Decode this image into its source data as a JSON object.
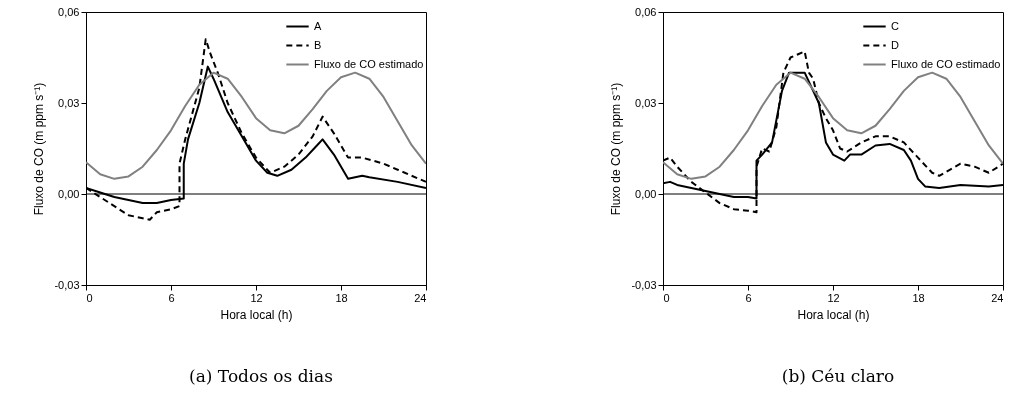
{
  "chart_data": [
    {
      "type": "line",
      "xlabel": "Hora local (h)",
      "ylabel": "Fluxo de CO (m ppm s⁻¹)",
      "xlim": [
        0,
        24
      ],
      "ylim": [
        -0.03,
        0.06
      ],
      "xticks": [
        0,
        6,
        12,
        18,
        24
      ],
      "yticks": [
        {
          "value": -0.03,
          "label": "-0,03"
        },
        {
          "value": 0,
          "label": "0,00"
        },
        {
          "value": 0.03,
          "label": "0,03"
        },
        {
          "value": 0.06,
          "label": "0,06"
        }
      ],
      "grid": false,
      "legend": "top right",
      "marker": "none",
      "ref_lines": [
        {
          "axis": "y",
          "value": 0
        }
      ],
      "annotations": [
        "(a)  Todos os dias"
      ],
      "series": [
        {
          "name": "A",
          "color": "#000000",
          "line_style": "solid",
          "x": [
            0,
            1,
            2,
            3,
            4,
            5,
            6,
            6.9,
            6.9,
            7.2,
            8,
            8.6,
            9,
            10,
            11,
            12,
            12.8,
            13.5,
            14.5,
            15.5,
            16.3,
            16.7,
            17.5,
            18.5,
            19.5,
            20,
            22,
            24
          ],
          "values": [
            0.002,
            0.0005,
            -0.001,
            -0.002,
            -0.003,
            -0.003,
            -0.002,
            -0.0015,
            0.01,
            0.018,
            0.03,
            0.042,
            0.038,
            0.027,
            0.019,
            0.011,
            0.007,
            0.006,
            0.008,
            0.012,
            0.016,
            0.018,
            0.013,
            0.005,
            0.006,
            0.0055,
            0.004,
            0.002
          ]
        },
        {
          "name": "B",
          "color": "#000000",
          "line_style": "dashed",
          "x": [
            0,
            1,
            2,
            3,
            4,
            4.5,
            5,
            6,
            6.6,
            6.6,
            7,
            8,
            8.45,
            8.8,
            9.3,
            10,
            11,
            12,
            13,
            14,
            15,
            16,
            16.7,
            17.5,
            18.5,
            19.5,
            21,
            22,
            23.5,
            24
          ],
          "values": [
            0.002,
            -0.001,
            -0.004,
            -0.007,
            -0.008,
            -0.0085,
            -0.006,
            -0.005,
            -0.004,
            0.01,
            0.018,
            0.035,
            0.051,
            0.046,
            0.04,
            0.03,
            0.02,
            0.012,
            0.007,
            0.009,
            0.013,
            0.019,
            0.0255,
            0.02,
            0.012,
            0.012,
            0.01,
            0.008,
            0.005,
            0.004
          ]
        },
        {
          "name": "Fluxo de CO estimado",
          "color": "#808080",
          "line_style": "solid",
          "x": [
            0,
            1,
            2,
            3,
            4,
            5,
            6,
            7,
            8,
            9,
            10,
            11,
            12,
            13,
            14,
            15,
            16,
            17,
            18,
            19,
            20,
            21,
            22,
            23,
            24
          ],
          "values": [
            0.0105,
            0.0065,
            0.005,
            0.0058,
            0.009,
            0.0145,
            0.021,
            0.029,
            0.036,
            0.04,
            0.038,
            0.032,
            0.025,
            0.021,
            0.02,
            0.0225,
            0.028,
            0.034,
            0.0385,
            0.04,
            0.038,
            0.032,
            0.024,
            0.016,
            0.01
          ]
        }
      ]
    },
    {
      "type": "line",
      "xlabel": "Hora local (h)",
      "ylabel": "Fluxo de CO (m ppm s⁻¹)",
      "xlim": [
        0,
        24
      ],
      "ylim": [
        -0.03,
        0.06
      ],
      "xticks": [
        0,
        6,
        12,
        18,
        24
      ],
      "yticks": [
        {
          "value": -0.03,
          "label": "-0,03"
        },
        {
          "value": 0,
          "label": "0,00"
        },
        {
          "value": 0.03,
          "label": "0,03"
        },
        {
          "value": 0.06,
          "label": "0,06"
        }
      ],
      "grid": false,
      "legend": "top right",
      "marker": "none",
      "ref_lines": [
        {
          "axis": "y",
          "value": 0
        }
      ],
      "annotations": [
        "(b)  Céu claro"
      ],
      "series": [
        {
          "name": "C",
          "color": "#000000",
          "line_style": "solid",
          "x": [
            0,
            0.5,
            1,
            2,
            3,
            4,
            5,
            6,
            6.6,
            6.6,
            7,
            7.7,
            8.4,
            8.9,
            10,
            10.5,
            11,
            11.5,
            12,
            12.8,
            13.2,
            14,
            15,
            16,
            17,
            17.5,
            18,
            18.5,
            19.5,
            21,
            23,
            24
          ],
          "values": [
            0.0035,
            0.004,
            0.003,
            0.002,
            0.001,
            0,
            -0.001,
            -0.001,
            -0.0015,
            0.011,
            0.013,
            0.017,
            0.034,
            0.04,
            0.04,
            0.035,
            0.03,
            0.017,
            0.013,
            0.011,
            0.013,
            0.013,
            0.016,
            0.0165,
            0.0145,
            0.011,
            0.005,
            0.0025,
            0.002,
            0.003,
            0.0025,
            0.003
          ]
        },
        {
          "name": "D",
          "color": "#000000",
          "line_style": "dashed",
          "x": [
            0,
            0.5,
            1,
            2,
            3,
            4,
            5,
            6,
            6.6,
            6.6,
            7,
            7.5,
            8,
            8.5,
            9,
            9.5,
            10,
            10.3,
            10.6,
            11,
            11.5,
            12,
            12.5,
            13,
            14,
            15,
            16,
            17,
            18,
            19,
            19.5,
            21,
            22,
            23,
            24
          ],
          "values": [
            0.011,
            0.012,
            0.009,
            0.004,
            0.0005,
            -0.003,
            -0.005,
            -0.0055,
            -0.006,
            0.009,
            0.015,
            0.014,
            0.022,
            0.04,
            0.045,
            0.046,
            0.047,
            0.04,
            0.038,
            0.03,
            0.025,
            0.021,
            0.015,
            0.014,
            0.017,
            0.019,
            0.019,
            0.017,
            0.012,
            0.007,
            0.006,
            0.01,
            0.009,
            0.007,
            0.01
          ]
        },
        {
          "name": "Fluxo de CO estimado",
          "color": "#808080",
          "line_style": "solid",
          "x": [
            0,
            1,
            2,
            3,
            4,
            5,
            6,
            7,
            8,
            9,
            10,
            11,
            12,
            13,
            14,
            15,
            16,
            17,
            18,
            19,
            20,
            21,
            22,
            23,
            24
          ],
          "values": [
            0.0105,
            0.0065,
            0.005,
            0.0058,
            0.009,
            0.0145,
            0.021,
            0.029,
            0.036,
            0.04,
            0.038,
            0.032,
            0.025,
            0.021,
            0.02,
            0.0225,
            0.028,
            0.034,
            0.0385,
            0.04,
            0.038,
            0.032,
            0.024,
            0.016,
            0.01
          ]
        }
      ]
    }
  ]
}
